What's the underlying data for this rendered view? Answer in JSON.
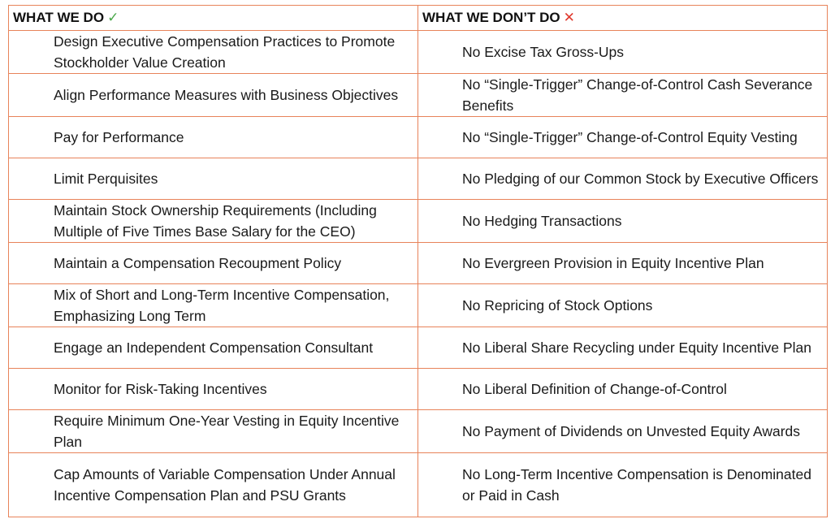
{
  "header": {
    "do_title": "WHAT WE DO",
    "do_mark": "✓",
    "dont_title": "WHAT WE DON’T DO",
    "dont_mark": "✕"
  },
  "rows": [
    {
      "do": "Design Executive Compensation Practices to Promote Stockholder Value Creation",
      "dont": "No Excise Tax Gross-Ups"
    },
    {
      "do": "Align Performance Measures with Business Objectives",
      "dont": "No “Single-Trigger” Change-of-Control Cash Severance Benefits"
    },
    {
      "do": "Pay for Performance",
      "dont": "No “Single-Trigger” Change-of-Control Equity Vesting"
    },
    {
      "do": "Limit Perquisites",
      "dont": "No Pledging of our Common Stock by Executive Officers"
    },
    {
      "do": "Maintain Stock Ownership Requirements (Including Multiple of Five Times Base Salary for the CEO)",
      "dont": "No Hedging Transactions"
    },
    {
      "do": "Maintain a Compensation Recoupment Policy",
      "dont": "No Evergreen Provision in Equity Incentive Plan"
    },
    {
      "do": "Mix of Short and Long-Term Incentive Compensation, Emphasizing Long Term",
      "dont": "No Repricing of Stock Options"
    },
    {
      "do": "Engage an Independent Compensation Consultant",
      "dont": "No Liberal Share Recycling under Equity Incentive Plan"
    },
    {
      "do": "Monitor for Risk-Taking Incentives",
      "dont": "No Liberal Definition of Change-of-Control"
    },
    {
      "do": "Require Minimum One-Year Vesting in Equity Incentive Plan",
      "dont": "No Payment of Dividends on Unvested Equity Awards"
    },
    {
      "do": "Cap Amounts of Variable Compensation Under Annual Incentive Compensation Plan and PSU Grants",
      "dont": "No Long-Term Incentive Compensation is Denominated or Paid in Cash"
    }
  ],
  "colors": {
    "border": "#e8835a",
    "check": "#4aa84a",
    "cross": "#e03a2e"
  }
}
